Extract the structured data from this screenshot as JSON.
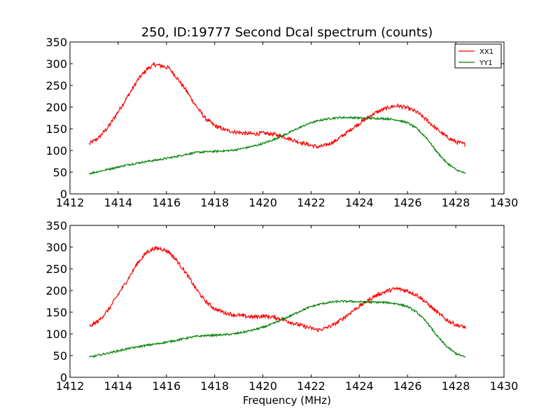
{
  "figure": {
    "title": "250, ID:19777 Second Dcal spectrum (counts)",
    "xlabel": "Frequency (MHz)"
  },
  "chart_data": [
    {
      "type": "line",
      "title": "250, ID:19777 Second Dcal spectrum (counts)",
      "xlabel": "",
      "ylabel": "",
      "xlim": [
        1412,
        1430
      ],
      "ylim": [
        0,
        350
      ],
      "xticks": [
        "1412",
        "1414",
        "1416",
        "1418",
        "1420",
        "1422",
        "1424",
        "1426",
        "1428",
        "1430"
      ],
      "yticks": [
        "0",
        "50",
        "100",
        "150",
        "200",
        "250",
        "300",
        "350"
      ],
      "grid": false,
      "legend": {
        "position": "top-right",
        "entries": [
          "XX1",
          "YY1"
        ]
      },
      "series": [
        {
          "name": "XX1",
          "color": "#ff0000",
          "x": [
            1412.8,
            1413.2,
            1413.6,
            1414.0,
            1414.4,
            1414.8,
            1415.2,
            1415.5,
            1415.8,
            1416.1,
            1416.4,
            1416.8,
            1417.2,
            1417.6,
            1418.0,
            1418.4,
            1418.8,
            1419.2,
            1419.6,
            1420.0,
            1420.4,
            1420.8,
            1421.2,
            1421.6,
            1422.0,
            1422.3,
            1422.6,
            1423.0,
            1423.4,
            1423.8,
            1424.2,
            1424.6,
            1425.0,
            1425.4,
            1425.6,
            1426.0,
            1426.4,
            1426.8,
            1427.2,
            1427.6,
            1428.0,
            1428.4
          ],
          "values": [
            115,
            130,
            155,
            190,
            225,
            262,
            288,
            298,
            295,
            290,
            270,
            240,
            205,
            175,
            157,
            148,
            143,
            140,
            138,
            140,
            138,
            133,
            125,
            118,
            112,
            108,
            112,
            122,
            138,
            155,
            170,
            185,
            195,
            202,
            203,
            198,
            188,
            170,
            150,
            132,
            120,
            114
          ]
        },
        {
          "name": "YY1",
          "color": "#008000",
          "x": [
            1412.8,
            1413.2,
            1413.6,
            1414.0,
            1414.4,
            1414.8,
            1415.2,
            1415.6,
            1416.0,
            1416.4,
            1416.8,
            1417.2,
            1417.6,
            1418.0,
            1418.4,
            1418.8,
            1419.2,
            1419.6,
            1420.0,
            1420.4,
            1420.8,
            1421.2,
            1421.6,
            1422.0,
            1422.4,
            1422.8,
            1423.2,
            1423.6,
            1424.0,
            1424.4,
            1424.8,
            1425.2,
            1425.6,
            1426.0,
            1426.4,
            1426.8,
            1427.2,
            1427.6,
            1428.0,
            1428.4
          ],
          "values": [
            47,
            52,
            57,
            62,
            67,
            71,
            75,
            78,
            82,
            86,
            91,
            95,
            97,
            98,
            99,
            101,
            105,
            110,
            116,
            124,
            134,
            144,
            155,
            164,
            170,
            174,
            176,
            176,
            175,
            174,
            174,
            173,
            170,
            164,
            150,
            128,
            98,
            73,
            56,
            47
          ]
        }
      ]
    },
    {
      "type": "line",
      "title": "",
      "xlabel": "Frequency (MHz)",
      "ylabel": "",
      "xlim": [
        1412,
        1430
      ],
      "ylim": [
        0,
        350
      ],
      "xticks": [
        "1412",
        "1414",
        "1416",
        "1418",
        "1420",
        "1422",
        "1424",
        "1426",
        "1428",
        "1430"
      ],
      "yticks": [
        "0",
        "50",
        "100",
        "150",
        "200",
        "250",
        "300",
        "350"
      ],
      "grid": false,
      "series": [
        {
          "name": "XX1",
          "color": "#ff0000",
          "x": [
            1412.8,
            1413.2,
            1413.6,
            1414.0,
            1414.4,
            1414.8,
            1415.2,
            1415.5,
            1415.8,
            1416.1,
            1416.4,
            1416.8,
            1417.2,
            1417.6,
            1418.0,
            1418.4,
            1418.8,
            1419.2,
            1419.6,
            1420.0,
            1420.4,
            1420.8,
            1421.2,
            1421.6,
            1422.0,
            1422.3,
            1422.6,
            1423.0,
            1423.4,
            1423.8,
            1424.2,
            1424.6,
            1425.0,
            1425.4,
            1425.6,
            1426.0,
            1426.4,
            1426.8,
            1427.2,
            1427.6,
            1428.0,
            1428.4
          ],
          "values": [
            116,
            131,
            156,
            191,
            226,
            263,
            289,
            297,
            296,
            289,
            271,
            241,
            206,
            176,
            158,
            149,
            144,
            141,
            139,
            141,
            139,
            134,
            126,
            119,
            113,
            109,
            113,
            123,
            139,
            156,
            171,
            186,
            196,
            203,
            204,
            199,
            189,
            171,
            151,
            133,
            121,
            115
          ]
        },
        {
          "name": "YY1",
          "color": "#008000",
          "x": [
            1412.8,
            1413.2,
            1413.6,
            1414.0,
            1414.4,
            1414.8,
            1415.2,
            1415.6,
            1416.0,
            1416.4,
            1416.8,
            1417.2,
            1417.6,
            1418.0,
            1418.4,
            1418.8,
            1419.2,
            1419.6,
            1420.0,
            1420.4,
            1420.8,
            1421.2,
            1421.6,
            1422.0,
            1422.4,
            1422.8,
            1423.2,
            1423.6,
            1424.0,
            1424.4,
            1424.8,
            1425.2,
            1425.6,
            1426.0,
            1426.4,
            1426.8,
            1427.2,
            1427.6,
            1428.0,
            1428.4
          ],
          "values": [
            46,
            51,
            56,
            61,
            66,
            70,
            74,
            77,
            81,
            85,
            90,
            94,
            96,
            97,
            98,
            100,
            104,
            109,
            115,
            123,
            133,
            143,
            154,
            163,
            169,
            173,
            175,
            175,
            174,
            173,
            173,
            172,
            169,
            163,
            149,
            127,
            97,
            72,
            55,
            46
          ]
        }
      ]
    }
  ]
}
